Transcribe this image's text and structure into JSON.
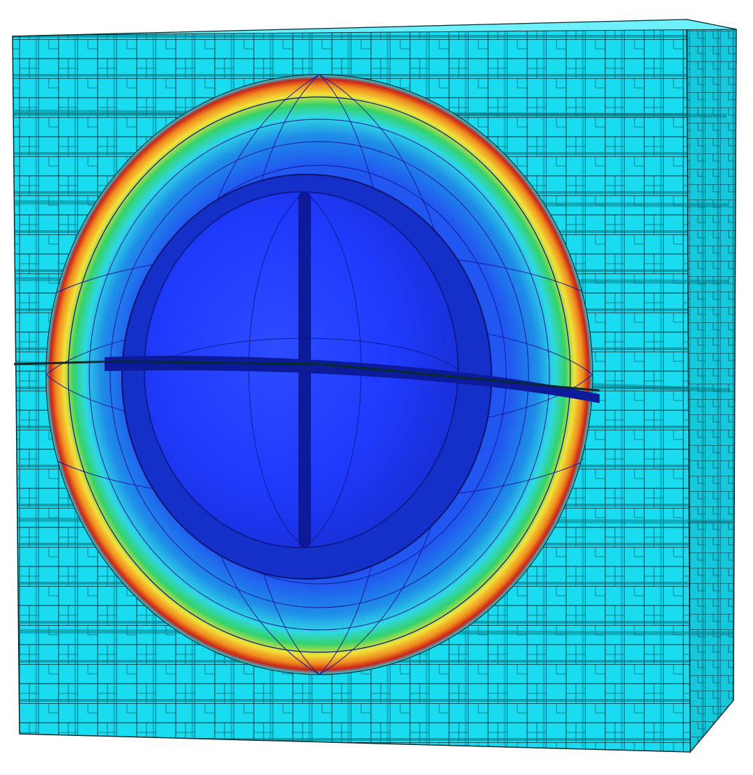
{
  "scene": {
    "subject": "adaptive-mesh-refinement-block",
    "colors": {
      "background": "#ffffff",
      "cell_face": "#19dcf0",
      "cell_side": "#0a6f7a",
      "cell_top": "#6cf0fb",
      "edge": "#062a30",
      "core": "#1f3bff",
      "core_dark": "#0d1a9a",
      "ring_cyan": "#2fe0e8",
      "ring_green": "#35d26a",
      "ring_yellow": "#f2e23a",
      "ring_orange": "#f08a1e",
      "ring_red": "#c8231a"
    }
  }
}
